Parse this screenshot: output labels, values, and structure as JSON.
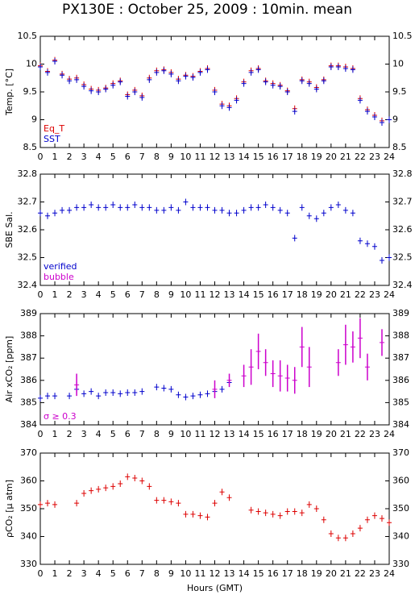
{
  "chart_data": [
    {
      "type": "scatter",
      "title": "PX130E : October 25, 2009 : 10min. mean",
      "ylabel": "Temp. [°C]",
      "xlim": [
        0,
        24
      ],
      "xticks": [
        0,
        1,
        2,
        3,
        4,
        5,
        6,
        7,
        8,
        9,
        10,
        11,
        12,
        13,
        14,
        15,
        16,
        17,
        18,
        19,
        20,
        21,
        22,
        23,
        24
      ],
      "ylim": [
        8.5,
        10.5
      ],
      "yticks": [
        8.5,
        9,
        9.5,
        10,
        10.5
      ],
      "series": [
        {
          "name": "Eq_T",
          "color": "#dd0000",
          "x": [
            0,
            0.5,
            1,
            1.5,
            2,
            2.5,
            3,
            3.5,
            4,
            4.5,
            5,
            5.5,
            6,
            6.5,
            7,
            7.5,
            8,
            8.5,
            9,
            9.5,
            10,
            10.5,
            11,
            11.5,
            12,
            12.5,
            13,
            13.5,
            14,
            14.5,
            15,
            15.5,
            16,
            16.5,
            17,
            17.5,
            18,
            18.5,
            19,
            19.5,
            20,
            20.5,
            21,
            21.5,
            22,
            22.5,
            23,
            23.5
          ],
          "values": [
            9.97,
            9.87,
            10.07,
            9.82,
            9.73,
            9.75,
            9.63,
            9.55,
            9.53,
            9.57,
            9.65,
            9.7,
            9.45,
            9.53,
            9.43,
            9.75,
            9.88,
            9.9,
            9.85,
            9.73,
            9.8,
            9.78,
            9.87,
            9.92,
            9.53,
            9.28,
            9.25,
            9.38,
            9.68,
            9.88,
            9.92,
            9.7,
            9.65,
            9.62,
            9.52,
            9.2,
            9.72,
            9.68,
            9.58,
            9.72,
            9.97,
            9.97,
            9.95,
            9.92,
            9.38,
            9.18,
            9.08,
            8.98
          ]
        },
        {
          "name": "SST",
          "color": "#0000cc",
          "x": [
            0,
            0.5,
            1,
            1.5,
            2,
            2.5,
            3,
            3.5,
            4,
            4.5,
            5,
            5.5,
            6,
            6.5,
            7,
            7.5,
            8,
            8.5,
            9,
            9.5,
            10,
            10.5,
            11,
            11.5,
            12,
            12.5,
            13,
            13.5,
            14,
            14.5,
            15,
            15.5,
            16,
            16.5,
            17,
            17.5,
            18,
            18.5,
            19,
            19.5,
            20,
            20.5,
            21,
            21.5,
            22,
            22.5,
            23,
            23.5,
            24
          ],
          "values": [
            9.95,
            9.85,
            10.05,
            9.8,
            9.7,
            9.72,
            9.6,
            9.52,
            9.5,
            9.55,
            9.62,
            9.68,
            9.42,
            9.5,
            9.4,
            9.72,
            9.85,
            9.88,
            9.82,
            9.7,
            9.78,
            9.76,
            9.85,
            9.9,
            9.5,
            9.25,
            9.22,
            9.35,
            9.65,
            9.85,
            9.9,
            9.68,
            9.62,
            9.6,
            9.5,
            9.15,
            9.7,
            9.65,
            9.55,
            9.7,
            9.95,
            9.95,
            9.92,
            9.9,
            9.35,
            9.15,
            9.05,
            8.95,
            9.0
          ]
        }
      ]
    },
    {
      "type": "scatter",
      "ylabel": "SBE Sal.",
      "xlim": [
        0,
        24
      ],
      "xticks": [
        0,
        1,
        2,
        3,
        4,
        5,
        6,
        7,
        8,
        9,
        10,
        11,
        12,
        13,
        14,
        15,
        16,
        17,
        18,
        19,
        20,
        21,
        22,
        23,
        24
      ],
      "ylim": [
        32.4,
        32.8
      ],
      "yticks": [
        32.4,
        32.5,
        32.6,
        32.7,
        32.8
      ],
      "series": [
        {
          "name": "verified",
          "color": "#0000cc",
          "x": [
            0,
            0.5,
            1,
            1.5,
            2,
            2.5,
            3,
            3.5,
            4,
            4.5,
            5,
            5.5,
            6,
            6.5,
            7,
            7.5,
            8,
            8.5,
            9,
            9.5,
            10,
            10.5,
            11,
            11.5,
            12,
            12.5,
            13,
            13.5,
            14,
            14.5,
            15,
            15.5,
            16,
            16.5,
            17,
            17.5,
            18,
            18.5,
            19,
            19.5,
            20,
            20.5,
            21,
            21.5,
            22,
            22.5,
            23,
            23.5,
            24
          ],
          "values": [
            32.66,
            32.65,
            32.66,
            32.67,
            32.67,
            32.68,
            32.68,
            32.69,
            32.68,
            32.68,
            32.69,
            32.68,
            32.68,
            32.69,
            32.68,
            32.68,
            32.67,
            32.67,
            32.68,
            32.67,
            32.7,
            32.68,
            32.68,
            32.68,
            32.67,
            32.67,
            32.66,
            32.66,
            32.67,
            32.68,
            32.68,
            32.69,
            32.68,
            32.67,
            32.66,
            32.57,
            32.68,
            32.65,
            32.64,
            32.66,
            32.68,
            32.69,
            32.67,
            32.66,
            32.56,
            32.55,
            32.54,
            32.49,
            32.5
          ]
        },
        {
          "name": "bubble",
          "color": "#cc00cc",
          "x": [],
          "values": []
        }
      ]
    },
    {
      "type": "scatter",
      "ylabel": "Air xCO₂ [ppm]",
      "xlim": [
        0,
        24
      ],
      "xticks": [
        0,
        1,
        2,
        3,
        4,
        5,
        6,
        7,
        8,
        9,
        10,
        11,
        12,
        13,
        14,
        15,
        16,
        17,
        18,
        19,
        20,
        21,
        22,
        23,
        24
      ],
      "ylim": [
        384,
        389
      ],
      "yticks": [
        384,
        385,
        386,
        387,
        388,
        389
      ],
      "series": [
        {
          "name": null,
          "color": "#0000cc",
          "x": [
            0,
            0.5,
            1,
            2,
            2.5,
            3,
            3.5,
            4,
            4.5,
            5,
            5.5,
            6,
            6.5,
            7,
            8,
            8.5,
            9,
            9.5,
            10,
            10.5,
            11,
            11.5,
            12,
            12.5,
            13
          ],
          "values": [
            385.2,
            385.3,
            385.3,
            385.3,
            385.6,
            385.4,
            385.5,
            385.3,
            385.45,
            385.45,
            385.4,
            385.45,
            385.45,
            385.5,
            385.7,
            385.65,
            385.6,
            385.35,
            385.25,
            385.3,
            385.35,
            385.4,
            385.5,
            385.6,
            385.9
          ]
        },
        {
          "name": "σ ≥ 0.3",
          "color": "#cc00cc",
          "x": [
            2.5,
            12,
            13,
            14,
            14.5,
            15,
            15.5,
            16,
            16.5,
            17,
            17.5,
            18,
            18.5,
            20.5,
            21,
            21.5,
            22,
            22.5,
            23.5
          ],
          "values": [
            385.8,
            385.6,
            386,
            386.2,
            386.6,
            387.3,
            386.8,
            386.3,
            386.2,
            386.1,
            386,
            387.5,
            386.6,
            386.8,
            387.6,
            387.5,
            387.9,
            386.6,
            387.7
          ],
          "errors": [
            0.5,
            0.4,
            0.3,
            0.5,
            0.8,
            0.8,
            0.6,
            0.6,
            0.7,
            0.6,
            0.6,
            0.9,
            0.9,
            0.6,
            0.9,
            0.7,
            0.9,
            0.6,
            0.6
          ]
        }
      ]
    },
    {
      "type": "scatter",
      "ylabel": "ρCO₂ [μ atm]",
      "xlabel": "Hours (GMT)",
      "xlim": [
        0,
        24
      ],
      "xticks": [
        0,
        1,
        2,
        3,
        4,
        5,
        6,
        7,
        8,
        9,
        10,
        11,
        12,
        13,
        14,
        15,
        16,
        17,
        18,
        19,
        20,
        21,
        22,
        23,
        24
      ],
      "ylim": [
        330,
        370
      ],
      "yticks": [
        330,
        340,
        350,
        360,
        370
      ],
      "series": [
        {
          "name": null,
          "color": "#dd0000",
          "x": [
            0,
            0.5,
            1,
            2.5,
            3,
            3.5,
            4,
            4.5,
            5,
            5.5,
            6,
            6.5,
            7,
            7.5,
            8,
            8.5,
            9,
            9.5,
            10,
            10.5,
            11,
            11.5,
            12,
            12.5,
            13,
            14.5,
            15,
            15.5,
            16,
            16.5,
            17,
            17.5,
            18,
            18.5,
            19,
            19.5,
            20,
            20.5,
            21,
            21.5,
            22,
            22.5,
            23,
            23.5,
            24
          ],
          "values": [
            351.5,
            352,
            351.5,
            352,
            355.5,
            356.5,
            357,
            357.5,
            358,
            359,
            361.5,
            361,
            360,
            358,
            353,
            353,
            352.5,
            352,
            348,
            348,
            347.5,
            347,
            352,
            356,
            354,
            349.5,
            349,
            348.5,
            348,
            347.5,
            349,
            349,
            348.5,
            351.5,
            350,
            346,
            341,
            339.5,
            339.5,
            341,
            343,
            346,
            347.5,
            346.5,
            345
          ]
        }
      ]
    }
  ]
}
